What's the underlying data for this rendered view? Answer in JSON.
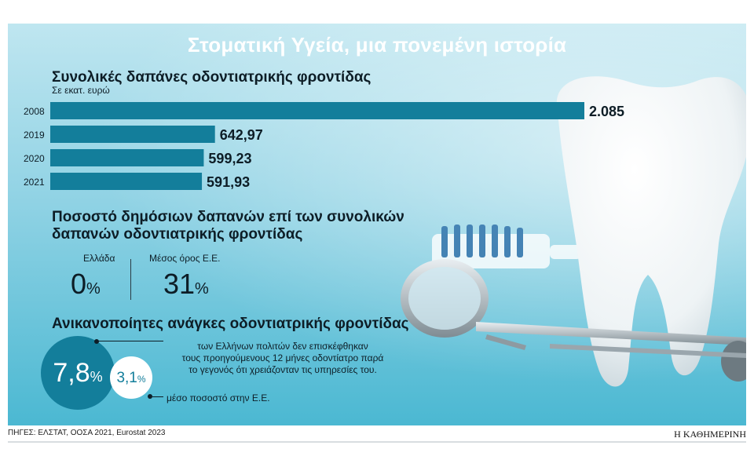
{
  "title": "Στοματική Υγεία, μια πονεμένη ιστορία",
  "section1": {
    "heading": "Συνολικές δαπάνες οδοντιατρικής φροντίδας",
    "unit": "Σε εκατ. ευρώ"
  },
  "chart_data": {
    "type": "bar",
    "orientation": "horizontal",
    "title": "Συνολικές δαπάνες οδοντιατρικής φροντίδας",
    "ylabel": "Σε εκατ. ευρώ",
    "categories": [
      "2008",
      "2019",
      "2020",
      "2021"
    ],
    "values": [
      2085,
      642.97,
      599.23,
      591.93
    ],
    "value_labels": [
      "2.085",
      "642,97",
      "599,23",
      "591,93"
    ],
    "xlim": [
      0,
      2085
    ],
    "grid": false,
    "bar_color": "#137e9b"
  },
  "section2": {
    "heading_line1": "Ποσοστό δημόσιων δαπανών επί των συνολικών",
    "heading_line2": "δαπανών οδοντιατρικής φροντίδας",
    "greece_label": "Ελλάδα",
    "greece_value": "0",
    "eu_label": "Μέσος όρος Ε.Ε.",
    "eu_value": "31",
    "percent_sign": "%"
  },
  "section3": {
    "heading": "Ανικανοποίητες ανάγκες οδοντιατρικής φροντίδας",
    "greece_value": "7,8",
    "eu_value": "3,1",
    "percent_sign": "%",
    "desc_line1": "των Ελλήνων πολιτών δεν επισκέφθηκαν",
    "desc_line2": "τους προηγούμενους 12 μήνες οδοντίατρο παρά",
    "desc_line3": "το γεγονός ότι χρειάζονταν τις υπηρεσίες του.",
    "eu_desc": "μέσο ποσοστό στην Ε.Ε."
  },
  "source": "ΠΗΓΕΣ: ΕΛΣΤΑΤ, ΟΟΣΑ 2021, Eurostat 2023",
  "brand": "Η ΚΑΘΗΜΕΡΙΝΗ",
  "colors": {
    "accent": "#137e9b",
    "background_top": "#bfe6f0",
    "background_bottom": "#4bb8d2",
    "text": "#0d1d26"
  }
}
